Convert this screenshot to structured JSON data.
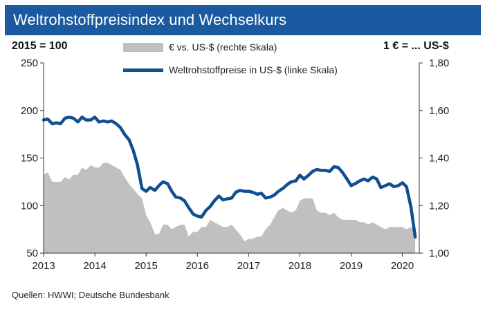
{
  "title": "Weltrohstoffpreisindex und Wechselkurs",
  "source": "Quellen: HWWI; Deutsche Bundesbank",
  "chart_data": {
    "type": "area+line",
    "left_axis_label": "2015 = 100",
    "right_axis_label": "1 € = ... US-$",
    "left_ylim": [
      50,
      250
    ],
    "right_ylim": [
      1.0,
      1.8
    ],
    "left_ticks": [
      "250",
      "200",
      "150",
      "100",
      "50"
    ],
    "right_ticks": [
      "1,80",
      "1,60",
      "1,40",
      "1,20",
      "1,00"
    ],
    "x_ticks": [
      "2013",
      "2014",
      "2015",
      "2016",
      "2017",
      "2018",
      "2019",
      "2020"
    ],
    "xlim": [
      2013,
      2020.33
    ],
    "legend": {
      "area": "€ vs. US-$ (rechte Skala)",
      "line": "Weltrohstoffpreise in US-$ (linke Skala)"
    },
    "colors": {
      "area": "#c0c0c0",
      "line": "#0f4f91",
      "title_bg": "#1b5aa0"
    },
    "series": [
      {
        "name": "€ vs. US-$ (rechte Skala)",
        "axis": "right",
        "x": [
          2013.0,
          2013.08,
          2013.17,
          2013.25,
          2013.33,
          2013.42,
          2013.5,
          2013.58,
          2013.67,
          2013.75,
          2013.83,
          2013.92,
          2014.0,
          2014.08,
          2014.17,
          2014.25,
          2014.33,
          2014.42,
          2014.5,
          2014.58,
          2014.67,
          2014.75,
          2014.83,
          2014.92,
          2015.0,
          2015.08,
          2015.17,
          2015.25,
          2015.33,
          2015.42,
          2015.5,
          2015.58,
          2015.67,
          2015.75,
          2015.83,
          2015.92,
          2016.0,
          2016.08,
          2016.17,
          2016.25,
          2016.33,
          2016.42,
          2016.5,
          2016.58,
          2016.67,
          2016.75,
          2016.83,
          2016.92,
          2017.0,
          2017.08,
          2017.17,
          2017.25,
          2017.33,
          2017.42,
          2017.5,
          2017.58,
          2017.67,
          2017.75,
          2017.83,
          2017.92,
          2018.0,
          2018.08,
          2018.17,
          2018.25,
          2018.33,
          2018.42,
          2018.5,
          2018.58,
          2018.67,
          2018.75,
          2018.83,
          2018.92,
          2019.0,
          2019.08,
          2019.17,
          2019.25,
          2019.33,
          2019.42,
          2019.5,
          2019.58,
          2019.67,
          2019.75,
          2019.83,
          2019.92,
          2020.0,
          2020.08,
          2020.17,
          2020.25
        ],
        "values": [
          1.33,
          1.34,
          1.3,
          1.3,
          1.3,
          1.32,
          1.31,
          1.33,
          1.33,
          1.36,
          1.35,
          1.37,
          1.36,
          1.36,
          1.38,
          1.38,
          1.37,
          1.36,
          1.35,
          1.32,
          1.29,
          1.27,
          1.25,
          1.23,
          1.16,
          1.13,
          1.08,
          1.08,
          1.12,
          1.12,
          1.1,
          1.11,
          1.12,
          1.12,
          1.07,
          1.09,
          1.09,
          1.11,
          1.11,
          1.14,
          1.13,
          1.12,
          1.11,
          1.11,
          1.12,
          1.1,
          1.08,
          1.05,
          1.06,
          1.06,
          1.07,
          1.07,
          1.1,
          1.12,
          1.15,
          1.18,
          1.19,
          1.18,
          1.17,
          1.18,
          1.22,
          1.23,
          1.23,
          1.23,
          1.18,
          1.17,
          1.17,
          1.16,
          1.17,
          1.15,
          1.14,
          1.14,
          1.14,
          1.14,
          1.13,
          1.13,
          1.12,
          1.13,
          1.12,
          1.11,
          1.1,
          1.11,
          1.11,
          1.11,
          1.11,
          1.1,
          1.11,
          1.09
        ]
      },
      {
        "name": "Weltrohstoffpreise in US-$ (linke Skala)",
        "axis": "left",
        "x": [
          2013.0,
          2013.08,
          2013.17,
          2013.25,
          2013.33,
          2013.42,
          2013.5,
          2013.58,
          2013.67,
          2013.75,
          2013.83,
          2013.92,
          2014.0,
          2014.08,
          2014.17,
          2014.25,
          2014.33,
          2014.42,
          2014.5,
          2014.58,
          2014.67,
          2014.75,
          2014.83,
          2014.92,
          2015.0,
          2015.08,
          2015.17,
          2015.25,
          2015.33,
          2015.42,
          2015.5,
          2015.58,
          2015.67,
          2015.75,
          2015.83,
          2015.92,
          2016.0,
          2016.08,
          2016.17,
          2016.25,
          2016.33,
          2016.42,
          2016.5,
          2016.58,
          2016.67,
          2016.75,
          2016.83,
          2016.92,
          2017.0,
          2017.08,
          2017.17,
          2017.25,
          2017.33,
          2017.42,
          2017.5,
          2017.58,
          2017.67,
          2017.75,
          2017.83,
          2017.92,
          2018.0,
          2018.08,
          2018.17,
          2018.25,
          2018.33,
          2018.42,
          2018.5,
          2018.58,
          2018.67,
          2018.75,
          2018.83,
          2018.92,
          2019.0,
          2019.08,
          2019.17,
          2019.25,
          2019.33,
          2019.42,
          2019.5,
          2019.58,
          2019.67,
          2019.75,
          2019.83,
          2019.92,
          2020.0,
          2020.08,
          2020.17,
          2020.25
        ],
        "values": [
          190,
          191,
          186,
          187,
          186,
          192,
          193,
          192,
          188,
          193,
          190,
          190,
          193,
          188,
          189,
          188,
          189,
          186,
          182,
          175,
          169,
          158,
          143,
          118,
          115,
          119,
          116,
          121,
          125,
          123,
          115,
          109,
          108,
          105,
          98,
          91,
          89,
          88,
          95,
          99,
          105,
          110,
          106,
          107,
          108,
          114,
          116,
          115,
          115,
          114,
          112,
          113,
          108,
          109,
          111,
          115,
          118,
          122,
          125,
          126,
          132,
          128,
          132,
          136,
          138,
          137,
          137,
          136,
          141,
          140,
          135,
          128,
          121,
          123,
          126,
          128,
          126,
          130,
          128,
          119,
          121,
          123,
          120,
          121,
          124,
          120,
          98,
          67
        ]
      }
    ]
  }
}
